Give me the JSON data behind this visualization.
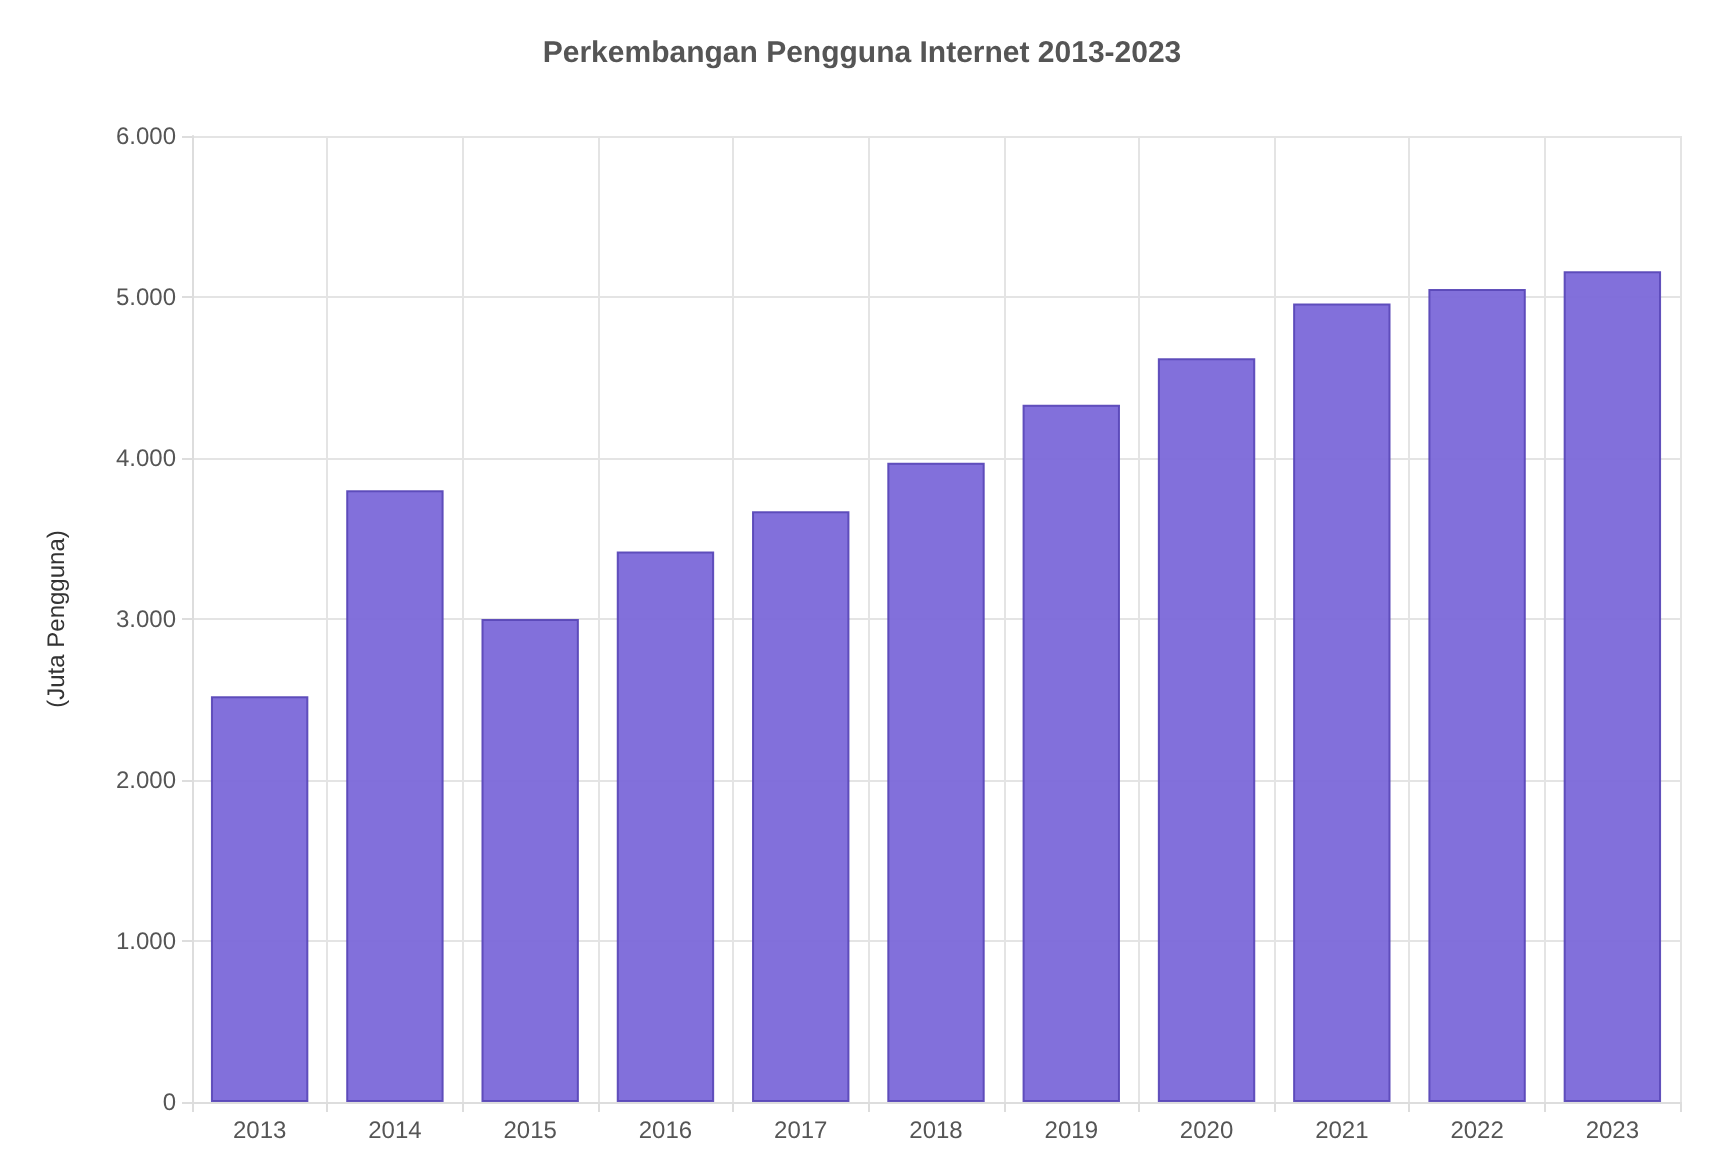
{
  "chart_data": {
    "type": "bar",
    "title": "Perkembangan Pengguna Internet 2013-2023",
    "ylabel": "(Juta Pengguna)",
    "categories": [
      "2013",
      "2014",
      "2015",
      "2016",
      "2017",
      "2018",
      "2019",
      "2020",
      "2021",
      "2022",
      "2023"
    ],
    "values": [
      2520,
      3800,
      3000,
      3420,
      3670,
      3970,
      4330,
      4620,
      4960,
      5050,
      5160
    ],
    "color": "#7b68d9",
    "ylim": [
      0,
      6000
    ],
    "yticks": [
      {
        "value": 0,
        "label": "0"
      },
      {
        "value": 1000,
        "label": "1.000"
      },
      {
        "value": 2000,
        "label": "2.000"
      },
      {
        "value": 3000,
        "label": "3.000"
      },
      {
        "value": 4000,
        "label": "4.000"
      },
      {
        "value": 5000,
        "label": "5.000"
      },
      {
        "value": 6000,
        "label": "6.000"
      }
    ],
    "grid": true
  }
}
